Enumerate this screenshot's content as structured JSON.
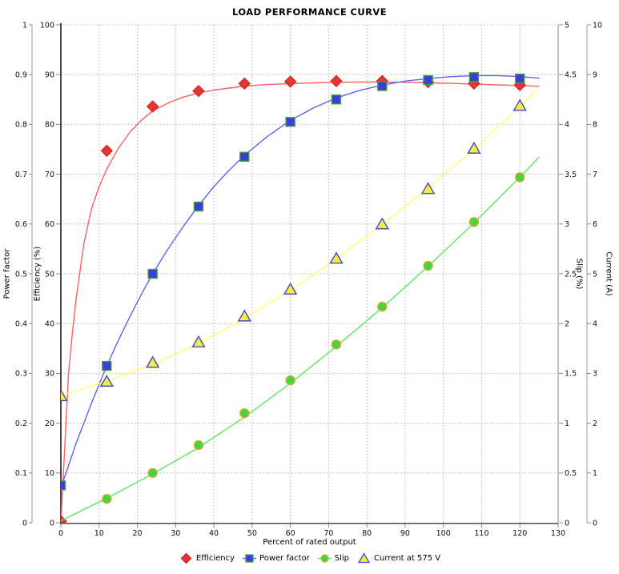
{
  "title": "LOAD PERFORMANCE CURVE",
  "chart_data": {
    "type": "line",
    "title": "LOAD PERFORMANCE CURVE",
    "xlabel": "Percent of rated output",
    "grid": "dashed",
    "legend_position": "bottom-center",
    "x_axis": {
      "min": 0,
      "max": 130,
      "tick_step": 10
    },
    "y_axes": [
      {
        "id": "power_factor",
        "label": "Power factor",
        "side": "left",
        "min": 0,
        "max": 1,
        "tick_step": 0.1
      },
      {
        "id": "efficiency",
        "label": "Efficiency (%)",
        "side": "left",
        "min": 0,
        "max": 100,
        "tick_step": 10
      },
      {
        "id": "slip",
        "label": "Slip (%)",
        "side": "right",
        "min": 0,
        "max": 5,
        "tick_step": 0.5
      },
      {
        "id": "current",
        "label": "Current (A)",
        "side": "right",
        "min": 0,
        "max": 10,
        "tick_step": 1
      }
    ],
    "series": [
      {
        "name": "Efficiency",
        "axis": "efficiency",
        "marker": "diamond",
        "line_color": "#ff5f5f",
        "marker_fill": "#ea3434",
        "marker_stroke": "#c42222",
        "x": [
          0,
          12,
          24,
          36,
          48,
          60,
          72,
          84,
          96,
          108,
          120
        ],
        "values": [
          0.3,
          74.7,
          83.6,
          86.7,
          88.2,
          88.6,
          88.7,
          88.7,
          88.5,
          88.2,
          87.9
        ],
        "fit_curve": [
          [
            0,
            0
          ],
          [
            1,
            15
          ],
          [
            2,
            30
          ],
          [
            3,
            38
          ],
          [
            4,
            45
          ],
          [
            6,
            56
          ],
          [
            8,
            63
          ],
          [
            10,
            67.5
          ],
          [
            12,
            71
          ],
          [
            15,
            75.2
          ],
          [
            18,
            78.4
          ],
          [
            21,
            80.8
          ],
          [
            24,
            82.7
          ],
          [
            28,
            84.3
          ],
          [
            32,
            85.5
          ],
          [
            36,
            86.3
          ],
          [
            40,
            86.9
          ],
          [
            44,
            87.3
          ],
          [
            48,
            87.7
          ],
          [
            54,
            88.0
          ],
          [
            60,
            88.2
          ],
          [
            66,
            88.35
          ],
          [
            72,
            88.45
          ],
          [
            78,
            88.5
          ],
          [
            84,
            88.5
          ],
          [
            90,
            88.45
          ],
          [
            96,
            88.35
          ],
          [
            102,
            88.25
          ],
          [
            108,
            88.1
          ],
          [
            114,
            87.95
          ],
          [
            120,
            87.8
          ],
          [
            125,
            87.65
          ]
        ]
      },
      {
        "name": "Power factor",
        "axis": "power_factor",
        "marker": "square",
        "line_color": "#6262f0",
        "marker_fill": "#3c3cd8",
        "marker_stroke": "#3fa03f",
        "x": [
          0,
          12,
          24,
          36,
          48,
          60,
          72,
          84,
          96,
          108,
          120
        ],
        "values": [
          0.075,
          0.315,
          0.5,
          0.635,
          0.735,
          0.805,
          0.85,
          0.877,
          0.889,
          0.895,
          0.892
        ],
        "fit_curve": [
          [
            0,
            0.07
          ],
          [
            2,
            0.115
          ],
          [
            4,
            0.16
          ],
          [
            6,
            0.2
          ],
          [
            8,
            0.24
          ],
          [
            10,
            0.278
          ],
          [
            12,
            0.315
          ],
          [
            15,
            0.366
          ],
          [
            18,
            0.413
          ],
          [
            21,
            0.458
          ],
          [
            24,
            0.5
          ],
          [
            28,
            0.55
          ],
          [
            32,
            0.595
          ],
          [
            36,
            0.637
          ],
          [
            40,
            0.675
          ],
          [
            44,
            0.708
          ],
          [
            48,
            0.738
          ],
          [
            54,
            0.776
          ],
          [
            60,
            0.808
          ],
          [
            66,
            0.833
          ],
          [
            72,
            0.853
          ],
          [
            78,
            0.868
          ],
          [
            84,
            0.879
          ],
          [
            90,
            0.887
          ],
          [
            96,
            0.892
          ],
          [
            102,
            0.896
          ],
          [
            108,
            0.898
          ],
          [
            114,
            0.898
          ],
          [
            120,
            0.896
          ],
          [
            125,
            0.893
          ]
        ]
      },
      {
        "name": "Slip",
        "axis": "slip",
        "marker": "circle",
        "line_color": "#5ce85c",
        "marker_fill": "#3fd83f",
        "marker_stroke": "#e8a030",
        "x": [
          12,
          24,
          36,
          48,
          60,
          72,
          84,
          96,
          108,
          120
        ],
        "values": [
          0.24,
          0.5,
          0.78,
          1.1,
          1.43,
          1.79,
          2.17,
          2.58,
          3.02,
          3.47
        ],
        "fit_curve": [
          [
            0,
            0.02
          ],
          [
            12,
            0.245
          ],
          [
            24,
            0.49
          ],
          [
            36,
            0.755
          ],
          [
            48,
            1.06
          ],
          [
            60,
            1.4
          ],
          [
            72,
            1.77
          ],
          [
            84,
            2.16
          ],
          [
            96,
            2.575
          ],
          [
            108,
            3.01
          ],
          [
            120,
            3.47
          ],
          [
            125,
            3.67
          ]
        ]
      },
      {
        "name": "Current at 575 V",
        "axis": "current",
        "marker": "triangle",
        "line_color": "#ffff66",
        "marker_fill": "#f2ec48",
        "marker_stroke": "#4848c8",
        "x": [
          0,
          12,
          24,
          36,
          48,
          60,
          72,
          84,
          96,
          108,
          120
        ],
        "values": [
          2.55,
          2.84,
          3.22,
          3.63,
          4.15,
          4.69,
          5.31,
          6.0,
          6.71,
          7.52,
          8.38
        ],
        "fit_curve": [
          [
            0,
            2.555
          ],
          [
            12,
            2.84
          ],
          [
            24,
            3.18
          ],
          [
            36,
            3.6
          ],
          [
            48,
            4.1
          ],
          [
            60,
            4.67
          ],
          [
            72,
            5.3
          ],
          [
            84,
            5.99
          ],
          [
            96,
            6.72
          ],
          [
            108,
            7.5
          ],
          [
            120,
            8.36
          ],
          [
            124,
            8.66
          ]
        ]
      }
    ],
    "colors": {
      "grid": "#c4c4c4",
      "frame_dark": "#4a4a4a",
      "frame_light": "#999999",
      "tick": "#888888",
      "text": "#111111"
    }
  }
}
